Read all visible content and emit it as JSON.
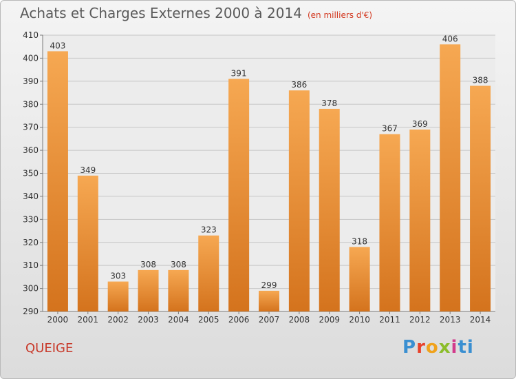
{
  "title": "Achats et Charges Externes 2000 à 2014",
  "unit": "(en milliers d'€)",
  "city": "QUEIGE",
  "logo": [
    "P",
    "r",
    "o",
    "x",
    "i",
    "ti"
  ],
  "colors": {
    "bar_light": "#f6a852",
    "bar_dark": "#d4731d",
    "grid": "#c6c6c6",
    "axis": "#7a7a7a"
  },
  "chart_data": {
    "type": "bar",
    "categories": [
      "2000",
      "2001",
      "2002",
      "2003",
      "2004",
      "2005",
      "2006",
      "2007",
      "2008",
      "2009",
      "2010",
      "2011",
      "2012",
      "2013",
      "2014"
    ],
    "values": [
      403,
      349,
      303,
      308,
      308,
      323,
      391,
      299,
      386,
      378,
      318,
      367,
      369,
      406,
      388
    ],
    "ylim": [
      290,
      410
    ],
    "yticks": [
      290,
      300,
      310,
      320,
      330,
      340,
      350,
      360,
      370,
      380,
      390,
      400,
      410
    ],
    "grid": true
  }
}
